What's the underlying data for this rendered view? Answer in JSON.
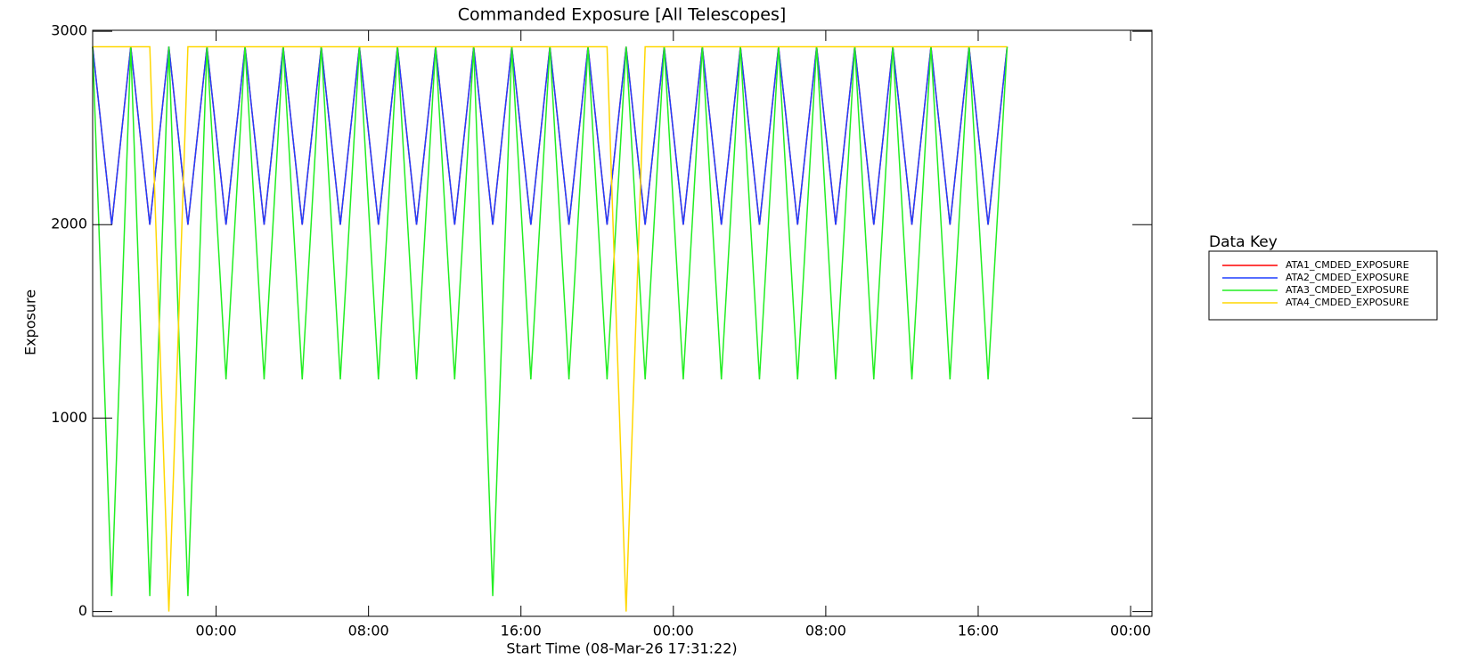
{
  "chart_data": {
    "type": "line",
    "title": "Commanded Exposure [All Telescopes]",
    "x_label": "Start Time (08-Mar-26 17:31:22)",
    "y_label": "Exposure",
    "legend_title": "Data Key",
    "legend": "right",
    "x": [
      0,
      1,
      2,
      3,
      4,
      5,
      6,
      7,
      8,
      9,
      10,
      11,
      12,
      13,
      14,
      15,
      16,
      17,
      18,
      19,
      20,
      21,
      22,
      23,
      24,
      25,
      26,
      27,
      28,
      29,
      30,
      31,
      32,
      33,
      34,
      35,
      36,
      37,
      38,
      39,
      40,
      41,
      42,
      43,
      44,
      45,
      46,
      47,
      48
    ],
    "series": [
      {
        "name": "ATA1_CMDED_EXPOSURE",
        "color": "#ff0000",
        "values": [
          2920,
          2000,
          2920,
          2000,
          2920,
          2000,
          2920,
          2000,
          2920,
          2000,
          2920,
          2000,
          2920,
          2000,
          2920,
          2000,
          2920,
          2000,
          2920,
          2000,
          2920,
          2000,
          2920,
          2000,
          2920,
          2000,
          2920,
          2000,
          2920,
          2000,
          2920,
          2000,
          2920,
          2000,
          2920,
          2000,
          2920,
          2000,
          2920,
          2000,
          2920,
          2000,
          2920,
          2000,
          2920,
          2000,
          2920,
          2000,
          2920
        ]
      },
      {
        "name": "ATA2_CMDED_EXPOSURE",
        "color": "#1f3fff",
        "values": [
          2920,
          2000,
          2920,
          2000,
          2920,
          2000,
          2920,
          2000,
          2920,
          2000,
          2920,
          2000,
          2920,
          2000,
          2920,
          2000,
          2920,
          2000,
          2920,
          2000,
          2920,
          2000,
          2920,
          2000,
          2920,
          2000,
          2920,
          2000,
          2920,
          2000,
          2920,
          2000,
          2920,
          2000,
          2920,
          2000,
          2920,
          2000,
          2920,
          2000,
          2920,
          2000,
          2920,
          2000,
          2920,
          2000,
          2920,
          2000,
          2920
        ]
      },
      {
        "name": "ATA3_CMDED_EXPOSURE",
        "color": "#22ee22",
        "values": [
          2920,
          80,
          2920,
          80,
          2920,
          80,
          2920,
          1200,
          2920,
          1200,
          2920,
          1200,
          2920,
          1200,
          2920,
          1200,
          2920,
          1200,
          2920,
          1200,
          2920,
          80,
          2920,
          1200,
          2920,
          1200,
          2920,
          1200,
          2920,
          1200,
          2920,
          1200,
          2920,
          1200,
          2920,
          1200,
          2920,
          1200,
          2920,
          1200,
          2920,
          1200,
          2920,
          1200,
          2920,
          1200,
          2920,
          1200,
          2920
        ]
      },
      {
        "name": "ATA4_CMDED_EXPOSURE",
        "color": "#ffd700",
        "values": [
          2920,
          2920,
          2920,
          2920,
          0,
          2920,
          2920,
          2920,
          2920,
          2920,
          2920,
          2920,
          2920,
          2920,
          2920,
          2920,
          2920,
          2920,
          2920,
          2920,
          2920,
          2920,
          2920,
          2920,
          2920,
          2920,
          2920,
          2920,
          0,
          2920,
          2920,
          2920,
          2920,
          2920,
          2920,
          2920,
          2920,
          2920,
          2920,
          2920,
          2920,
          2920,
          2920,
          2920,
          2920,
          2920,
          2920,
          2920,
          2920
        ]
      }
    ],
    "xlim": [
      0,
      55.6
    ],
    "xticks": [
      {
        "value": 6.48,
        "label": "00:00"
      },
      {
        "value": 14.48,
        "label": "08:00"
      },
      {
        "value": 22.48,
        "label": "16:00"
      },
      {
        "value": 30.48,
        "label": "00:00"
      },
      {
        "value": 38.48,
        "label": "08:00"
      },
      {
        "value": 46.48,
        "label": "16:00"
      },
      {
        "value": 54.48,
        "label": "00:00"
      }
    ],
    "ylim": [
      -25,
      3005
    ],
    "yticks": [
      0,
      1000,
      2000,
      3000
    ]
  }
}
